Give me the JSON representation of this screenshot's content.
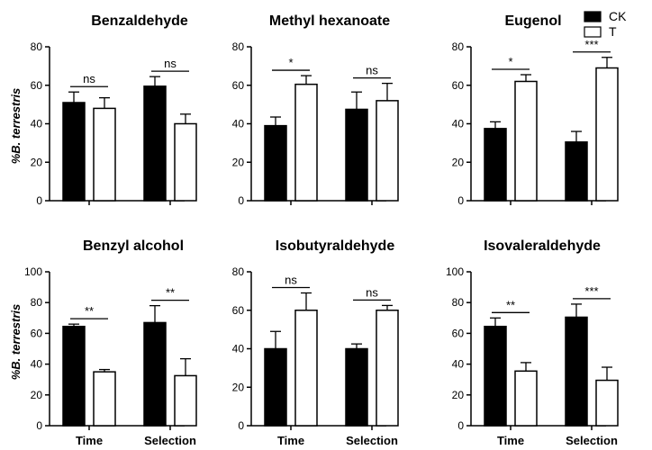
{
  "ylabel": "%B. terrestris",
  "legend": [
    {
      "name": "CK",
      "color": "#000000"
    },
    {
      "name": "T",
      "color": "#ffffff"
    }
  ],
  "categories": [
    "Time",
    "Selection"
  ],
  "chart_data": [
    {
      "type": "bar",
      "title": "Benzaldehyde",
      "categories": [
        "Time",
        "Selection"
      ],
      "ylim": [
        0,
        80
      ],
      "yticks": [
        0,
        20,
        40,
        60,
        80
      ],
      "show_xlabels": false,
      "series": [
        {
          "name": "CK",
          "values": [
            51,
            59.5
          ],
          "errors": [
            5.5,
            5
          ]
        },
        {
          "name": "T",
          "values": [
            48,
            40
          ],
          "errors": [
            5.5,
            5
          ]
        }
      ],
      "significance": [
        "ns",
        "ns"
      ]
    },
    {
      "type": "bar",
      "title": "Methyl hexanoate",
      "categories": [
        "Time",
        "Selection"
      ],
      "ylim": [
        0,
        80
      ],
      "yticks": [
        0,
        20,
        40,
        60,
        80
      ],
      "show_xlabels": false,
      "series": [
        {
          "name": "CK",
          "values": [
            39,
            47.5
          ],
          "errors": [
            4.5,
            9
          ]
        },
        {
          "name": "T",
          "values": [
            60.5,
            52
          ],
          "errors": [
            4.5,
            9
          ]
        }
      ],
      "significance": [
        "*",
        "ns"
      ]
    },
    {
      "type": "bar",
      "title": "Eugenol",
      "categories": [
        "Time",
        "Selection"
      ],
      "ylim": [
        0,
        80
      ],
      "yticks": [
        0,
        20,
        40,
        60,
        80
      ],
      "show_xlabels": false,
      "series": [
        {
          "name": "CK",
          "values": [
            37.5,
            30.5
          ],
          "errors": [
            3.5,
            5.5
          ]
        },
        {
          "name": "T",
          "values": [
            62,
            69
          ],
          "errors": [
            3.5,
            5.5
          ]
        }
      ],
      "significance": [
        "*",
        "***"
      ]
    },
    {
      "type": "bar",
      "title": "Benzyl alcohol",
      "categories": [
        "Time",
        "Selection"
      ],
      "ylim": [
        0,
        100
      ],
      "yticks": [
        0,
        20,
        40,
        60,
        80,
        100
      ],
      "show_xlabels": true,
      "series": [
        {
          "name": "CK",
          "values": [
            64.5,
            67
          ],
          "errors": [
            1.5,
            11
          ]
        },
        {
          "name": "T",
          "values": [
            35,
            32.5
          ],
          "errors": [
            1.5,
            11
          ]
        }
      ],
      "significance": [
        "**",
        "**"
      ]
    },
    {
      "type": "bar",
      "title": "Isobutyraldehyde",
      "categories": [
        "Time",
        "Selection"
      ],
      "ylim": [
        0,
        80
      ],
      "yticks": [
        0,
        20,
        40,
        60,
        80
      ],
      "show_xlabels": true,
      "series": [
        {
          "name": "CK",
          "values": [
            40,
            40
          ],
          "errors": [
            9,
            2.5
          ]
        },
        {
          "name": "T",
          "values": [
            60,
            60
          ],
          "errors": [
            9,
            2.5
          ]
        }
      ],
      "significance": [
        "ns",
        "ns"
      ]
    },
    {
      "type": "bar",
      "title": "Isovaleraldehyde",
      "categories": [
        "Time",
        "Selection"
      ],
      "ylim": [
        0,
        100
      ],
      "yticks": [
        0,
        20,
        40,
        60,
        80,
        100
      ],
      "show_xlabels": true,
      "series": [
        {
          "name": "CK",
          "values": [
            64.5,
            70.5
          ],
          "errors": [
            5.5,
            8.5
          ]
        },
        {
          "name": "T",
          "values": [
            35.5,
            29.5
          ],
          "errors": [
            5.5,
            8.5
          ]
        }
      ],
      "significance": [
        "**",
        "***"
      ]
    }
  ]
}
